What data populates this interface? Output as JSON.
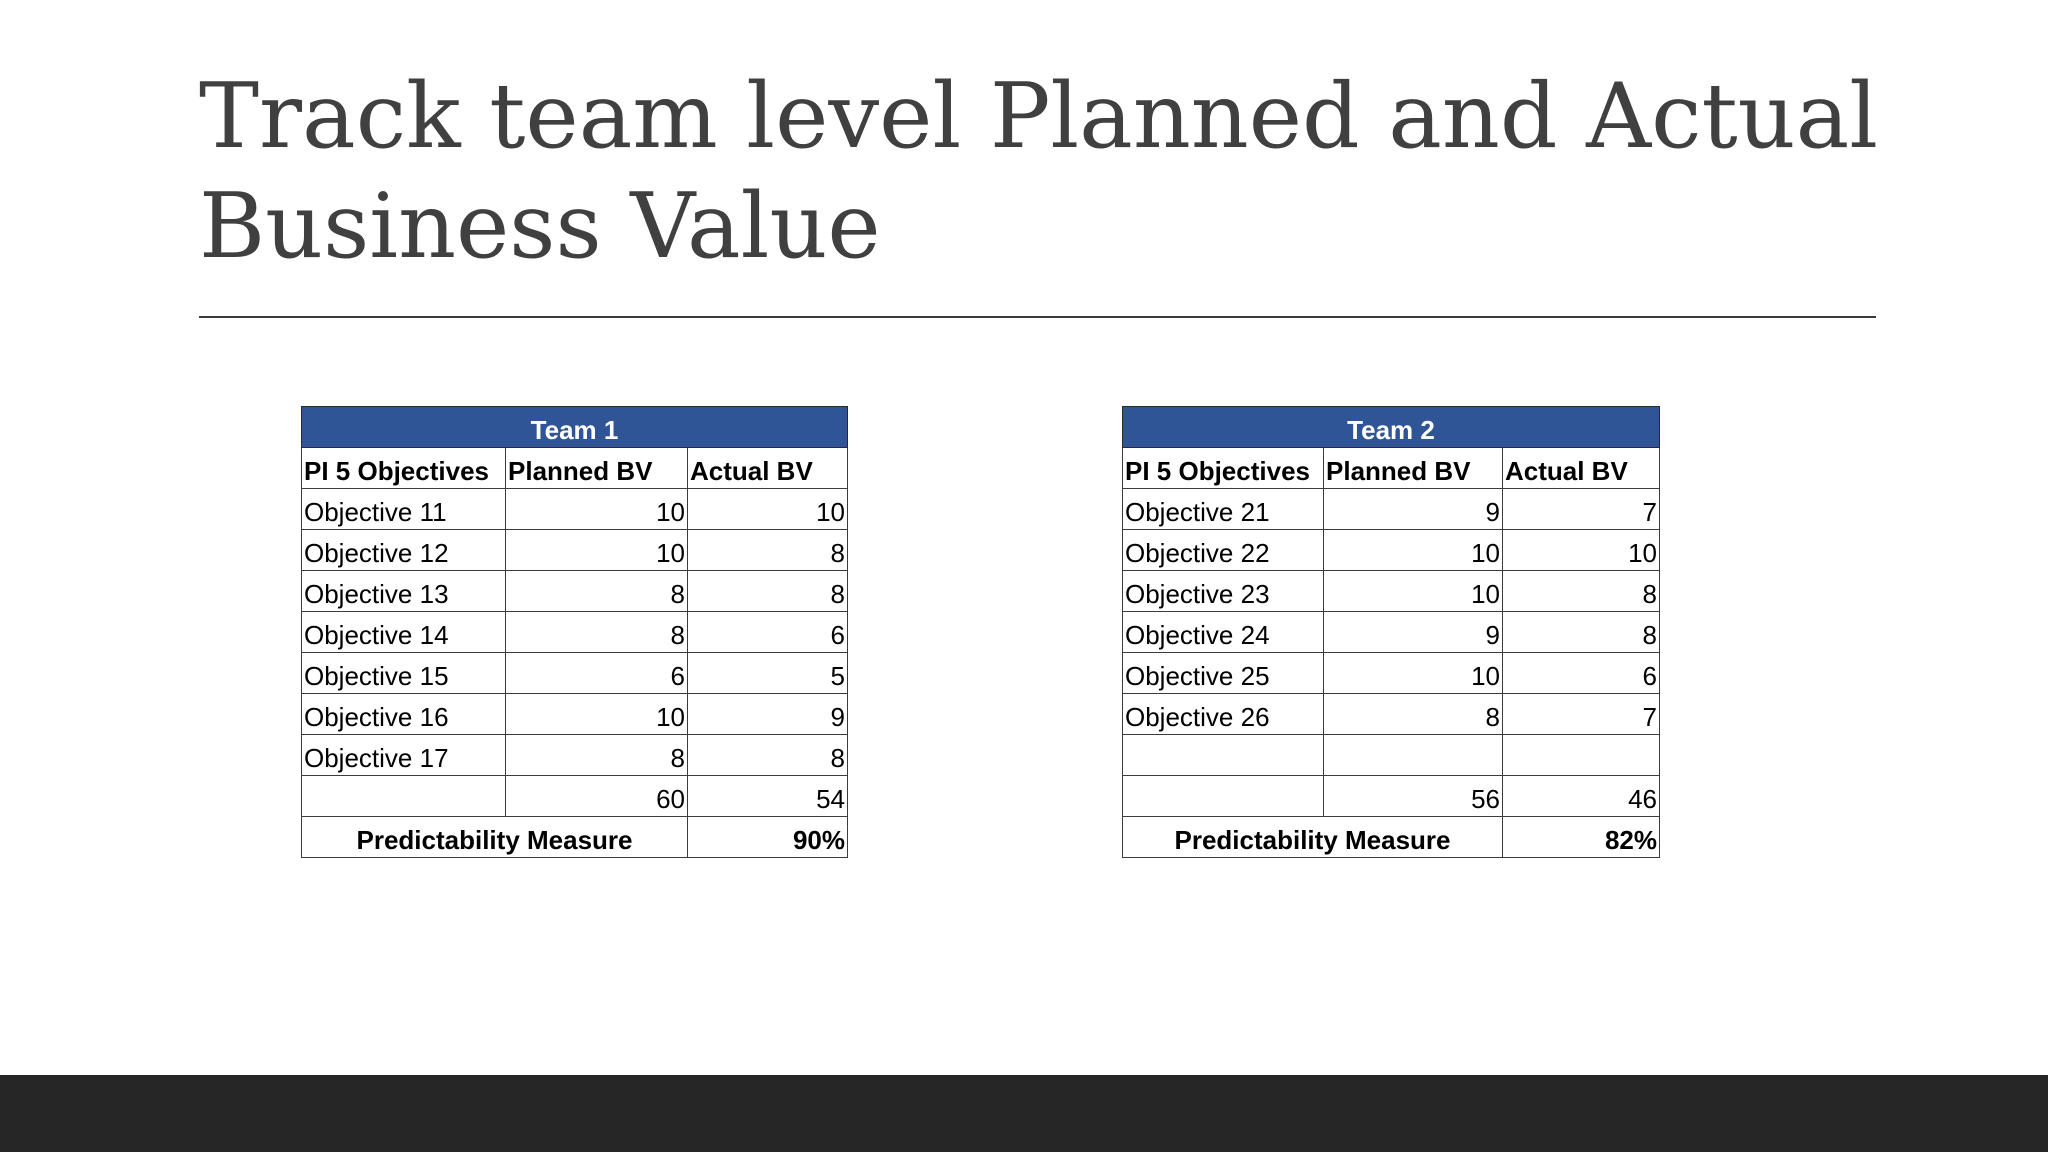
{
  "title": "Track team level Planned and Actual Business Value",
  "colors": {
    "header_fill": "#2f5597",
    "title_text": "#404040",
    "footer_bar": "#262626"
  },
  "tables": [
    {
      "team": "Team 1",
      "headers": [
        "PI 5 Objectives",
        "Planned BV",
        "Actual BV"
      ],
      "rows": [
        [
          "Objective 11",
          "10",
          "10"
        ],
        [
          "Objective 12",
          "10",
          "8"
        ],
        [
          "Objective 13",
          "8",
          "8"
        ],
        [
          "Objective 14",
          "8",
          "6"
        ],
        [
          "Objective 15",
          "6",
          "5"
        ],
        [
          "Objective 16",
          "10",
          "9"
        ],
        [
          "Objective 17",
          "8",
          "8"
        ]
      ],
      "totals": [
        "",
        "60",
        "54"
      ],
      "predictability_label": "Predictability Measure",
      "predictability_value": "90%"
    },
    {
      "team": "Team 2",
      "headers": [
        "PI 5 Objectives",
        "Planned BV",
        "Actual BV"
      ],
      "rows": [
        [
          "Objective 21",
          "9",
          "7"
        ],
        [
          "Objective 22",
          "10",
          "10"
        ],
        [
          "Objective 23",
          "10",
          "8"
        ],
        [
          "Objective 24",
          "9",
          "8"
        ],
        [
          "Objective 25",
          "10",
          "6"
        ],
        [
          "Objective 26",
          "8",
          "7"
        ],
        [
          "",
          "",
          ""
        ]
      ],
      "totals": [
        "",
        "56",
        "46"
      ],
      "predictability_label": "Predictability Measure",
      "predictability_value": "82%"
    }
  ]
}
